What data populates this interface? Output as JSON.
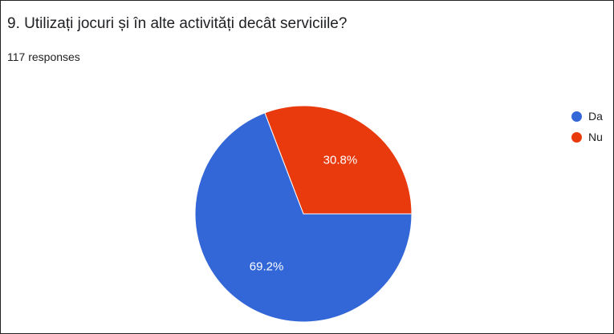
{
  "question": {
    "title": "9. Utilizați jocuri și în alte activități decât serviciile?",
    "responses": "117 responses"
  },
  "chart_data": {
    "type": "pie",
    "categories": [
      "Da",
      "Nu"
    ],
    "values": [
      69.2,
      30.8
    ],
    "labels": [
      "69.2%",
      "30.8%"
    ],
    "colors": [
      "#3366d6",
      "#e83a0d"
    ],
    "legend_position": "right"
  }
}
